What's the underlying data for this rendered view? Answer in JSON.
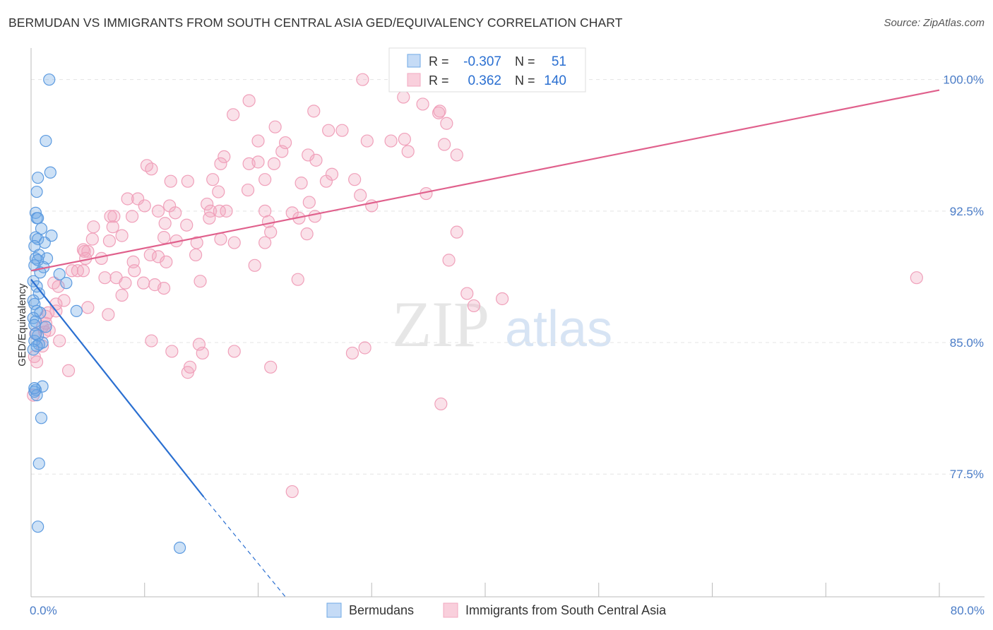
{
  "header": {
    "title": "BERMUDAN VS IMMIGRANTS FROM SOUTH CENTRAL ASIA GED/EQUIVALENCY CORRELATION CHART",
    "source": "Source: ZipAtlas.com"
  },
  "watermark": {
    "part1": "ZIP",
    "part2": "atlas"
  },
  "colors": {
    "blue": "#6fa8e6",
    "blue_line": "#2a6fd1",
    "pink": "#f2a8c0",
    "pink_line": "#e0608c",
    "axis_label": "#4a7cc7"
  },
  "legend_stats": [
    {
      "r_label": "R =",
      "r_value": "-0.307",
      "n_label": "N =",
      "n_value": "51"
    },
    {
      "r_label": "R =",
      "r_value": "0.362",
      "n_label": "N =",
      "n_value": "140"
    }
  ],
  "chart_data": {
    "type": "scatter",
    "title": "BERMUDAN VS IMMIGRANTS FROM SOUTH CENTRAL ASIA GED/EQUIVALENCY CORRELATION CHART",
    "xlabel": "",
    "ylabel": "GED/Equivalency",
    "xlim": [
      0,
      80
    ],
    "ylim": [
      70.5,
      101.8
    ],
    "x_tick_labels": [
      {
        "value": 0,
        "label": "0.0%"
      },
      {
        "value": 80,
        "label": "80.0%"
      }
    ],
    "y_tick_labels": [
      {
        "value": 100,
        "label": "100.0%"
      },
      {
        "value": 92.5,
        "label": "92.5%"
      },
      {
        "value": 85,
        "label": "85.0%"
      },
      {
        "value": 77.5,
        "label": "77.5%"
      }
    ],
    "grid": true,
    "legend_position": "bottom",
    "series": [
      {
        "name": "Bermudans",
        "color": "#6fa8e6",
        "trend": {
          "x0": 0,
          "y0": 88.6,
          "x1": 15.2,
          "y1": 76.2,
          "dashed_to_x": 22.4,
          "dashed_to_y": 70.5
        },
        "points": [
          [
            1.6,
            100.0
          ],
          [
            1.3,
            96.5
          ],
          [
            1.7,
            94.7
          ],
          [
            0.6,
            94.4
          ],
          [
            0.5,
            93.6
          ],
          [
            0.4,
            92.4
          ],
          [
            0.5,
            92.1
          ],
          [
            0.6,
            92.1
          ],
          [
            0.9,
            91.5
          ],
          [
            1.8,
            91.1
          ],
          [
            0.4,
            91.0
          ],
          [
            0.6,
            90.9
          ],
          [
            1.2,
            90.7
          ],
          [
            0.3,
            90.5
          ],
          [
            0.7,
            90.0
          ],
          [
            0.4,
            89.8
          ],
          [
            1.4,
            89.8
          ],
          [
            0.6,
            89.7
          ],
          [
            0.3,
            89.4
          ],
          [
            1.1,
            89.3
          ],
          [
            0.8,
            89.0
          ],
          [
            2.5,
            88.9
          ],
          [
            0.2,
            88.5
          ],
          [
            3.1,
            88.4
          ],
          [
            0.5,
            88.2
          ],
          [
            0.7,
            87.8
          ],
          [
            0.2,
            87.4
          ],
          [
            0.3,
            87.2
          ],
          [
            0.5,
            86.8
          ],
          [
            0.8,
            86.7
          ],
          [
            4.0,
            86.8
          ],
          [
            0.2,
            86.4
          ],
          [
            0.4,
            86.2
          ],
          [
            0.3,
            86.0
          ],
          [
            1.3,
            85.9
          ],
          [
            0.6,
            85.4
          ],
          [
            0.3,
            85.1
          ],
          [
            1.0,
            85.0
          ],
          [
            0.7,
            84.9
          ],
          [
            0.5,
            84.8
          ],
          [
            0.2,
            84.6
          ],
          [
            1.0,
            82.5
          ],
          [
            0.4,
            82.3
          ],
          [
            0.3,
            82.2
          ],
          [
            0.5,
            82.0
          ],
          [
            0.9,
            80.7
          ],
          [
            0.7,
            78.1
          ],
          [
            0.6,
            74.5
          ],
          [
            13.1,
            73.3
          ],
          [
            0.3,
            82.4
          ],
          [
            0.4,
            85.5
          ]
        ]
      },
      {
        "name": "Immigrants from South Central Asia",
        "color": "#f2a8c0",
        "trend": {
          "x0": 0,
          "y0": 89.1,
          "x1": 80,
          "y1": 99.4
        },
        "points": [
          [
            29.2,
            100.0
          ],
          [
            34.5,
            98.6
          ],
          [
            32.8,
            99.0
          ],
          [
            19.2,
            98.8
          ],
          [
            17.8,
            98.0
          ],
          [
            24.9,
            98.2
          ],
          [
            35.9,
            98.1
          ],
          [
            36.0,
            98.2
          ],
          [
            21.5,
            97.3
          ],
          [
            26.2,
            97.1
          ],
          [
            27.4,
            97.1
          ],
          [
            36.6,
            97.5
          ],
          [
            29.6,
            96.5
          ],
          [
            31.7,
            96.5
          ],
          [
            32.9,
            96.6
          ],
          [
            33.2,
            95.9
          ],
          [
            36.4,
            96.3
          ],
          [
            22.1,
            95.9
          ],
          [
            20.0,
            96.5
          ],
          [
            22.4,
            96.4
          ],
          [
            17.0,
            95.6
          ],
          [
            16.7,
            95.2
          ],
          [
            19.2,
            95.2
          ],
          [
            20.0,
            95.3
          ],
          [
            21.4,
            95.2
          ],
          [
            24.4,
            95.7
          ],
          [
            25.1,
            95.4
          ],
          [
            37.5,
            95.7
          ],
          [
            10.2,
            95.1
          ],
          [
            10.6,
            94.9
          ],
          [
            20.6,
            94.3
          ],
          [
            16.0,
            94.3
          ],
          [
            12.3,
            94.2
          ],
          [
            13.8,
            94.2
          ],
          [
            23.8,
            94.1
          ],
          [
            26.0,
            94.2
          ],
          [
            26.5,
            94.6
          ],
          [
            28.5,
            94.3
          ],
          [
            16.5,
            93.6
          ],
          [
            19.1,
            93.7
          ],
          [
            29.0,
            93.4
          ],
          [
            34.8,
            93.5
          ],
          [
            8.5,
            93.2
          ],
          [
            9.4,
            93.2
          ],
          [
            24.5,
            93.0
          ],
          [
            12.2,
            92.8
          ],
          [
            15.5,
            92.9
          ],
          [
            30.0,
            92.8
          ],
          [
            10.0,
            92.8
          ],
          [
            11.2,
            92.5
          ],
          [
            12.7,
            92.4
          ],
          [
            15.8,
            92.5
          ],
          [
            16.6,
            92.5
          ],
          [
            17.2,
            92.5
          ],
          [
            20.6,
            92.5
          ],
          [
            23.0,
            92.4
          ],
          [
            7.3,
            92.2
          ],
          [
            8.9,
            92.2
          ],
          [
            7.0,
            92.2
          ],
          [
            25.0,
            92.2
          ],
          [
            15.7,
            92.1
          ],
          [
            20.9,
            91.9
          ],
          [
            23.6,
            92.1
          ],
          [
            11.8,
            91.8
          ],
          [
            13.7,
            91.7
          ],
          [
            5.5,
            91.6
          ],
          [
            7.2,
            91.6
          ],
          [
            21.1,
            91.3
          ],
          [
            24.3,
            91.2
          ],
          [
            37.5,
            91.3
          ],
          [
            8.0,
            91.1
          ],
          [
            11.7,
            91.0
          ],
          [
            5.4,
            90.9
          ],
          [
            6.9,
            90.8
          ],
          [
            12.8,
            90.8
          ],
          [
            14.6,
            90.7
          ],
          [
            16.7,
            90.9
          ],
          [
            17.9,
            90.7
          ],
          [
            20.6,
            90.7
          ],
          [
            4.6,
            90.3
          ],
          [
            4.7,
            90.2
          ],
          [
            5.0,
            90.2
          ],
          [
            10.5,
            90.0
          ],
          [
            11.2,
            89.9
          ],
          [
            14.5,
            90.0
          ],
          [
            4.8,
            89.8
          ],
          [
            6.2,
            89.8
          ],
          [
            9.0,
            89.6
          ],
          [
            11.9,
            89.6
          ],
          [
            36.8,
            89.7
          ],
          [
            19.7,
            89.4
          ],
          [
            3.6,
            89.1
          ],
          [
            4.1,
            89.1
          ],
          [
            4.6,
            89.1
          ],
          [
            9.1,
            89.1
          ],
          [
            6.5,
            88.7
          ],
          [
            7.5,
            88.7
          ],
          [
            8.3,
            88.4
          ],
          [
            9.9,
            88.4
          ],
          [
            10.9,
            88.3
          ],
          [
            11.7,
            88.1
          ],
          [
            14.9,
            88.5
          ],
          [
            23.5,
            88.6
          ],
          [
            2.0,
            88.4
          ],
          [
            2.4,
            88.2
          ],
          [
            38.4,
            87.8
          ],
          [
            41.5,
            87.5
          ],
          [
            2.9,
            87.4
          ],
          [
            8.0,
            87.7
          ],
          [
            39.0,
            87.1
          ],
          [
            5.0,
            87.0
          ],
          [
            6.8,
            86.6
          ],
          [
            1.5,
            86.7
          ],
          [
            2.2,
            86.8
          ],
          [
            1.3,
            86.5
          ],
          [
            1.6,
            85.7
          ],
          [
            1.2,
            85.6
          ],
          [
            1.0,
            85.9
          ],
          [
            0.4,
            85.5
          ],
          [
            2.5,
            85.1
          ],
          [
            12.4,
            84.5
          ],
          [
            14.8,
            84.9
          ],
          [
            15.1,
            84.4
          ],
          [
            17.9,
            84.5
          ],
          [
            28.3,
            84.4
          ],
          [
            29.4,
            84.7
          ],
          [
            10.6,
            85.1
          ],
          [
            0.3,
            84.2
          ],
          [
            1.0,
            84.8
          ],
          [
            3.3,
            83.4
          ],
          [
            13.8,
            83.3
          ],
          [
            14.0,
            83.6
          ],
          [
            21.1,
            83.6
          ],
          [
            36.1,
            81.5
          ],
          [
            23.0,
            76.5
          ],
          [
            78.0,
            88.7
          ],
          [
            0.2,
            82.0
          ],
          [
            0.5,
            83.9
          ],
          [
            1.3,
            86.1
          ],
          [
            2.2,
            87.2
          ]
        ]
      }
    ]
  }
}
